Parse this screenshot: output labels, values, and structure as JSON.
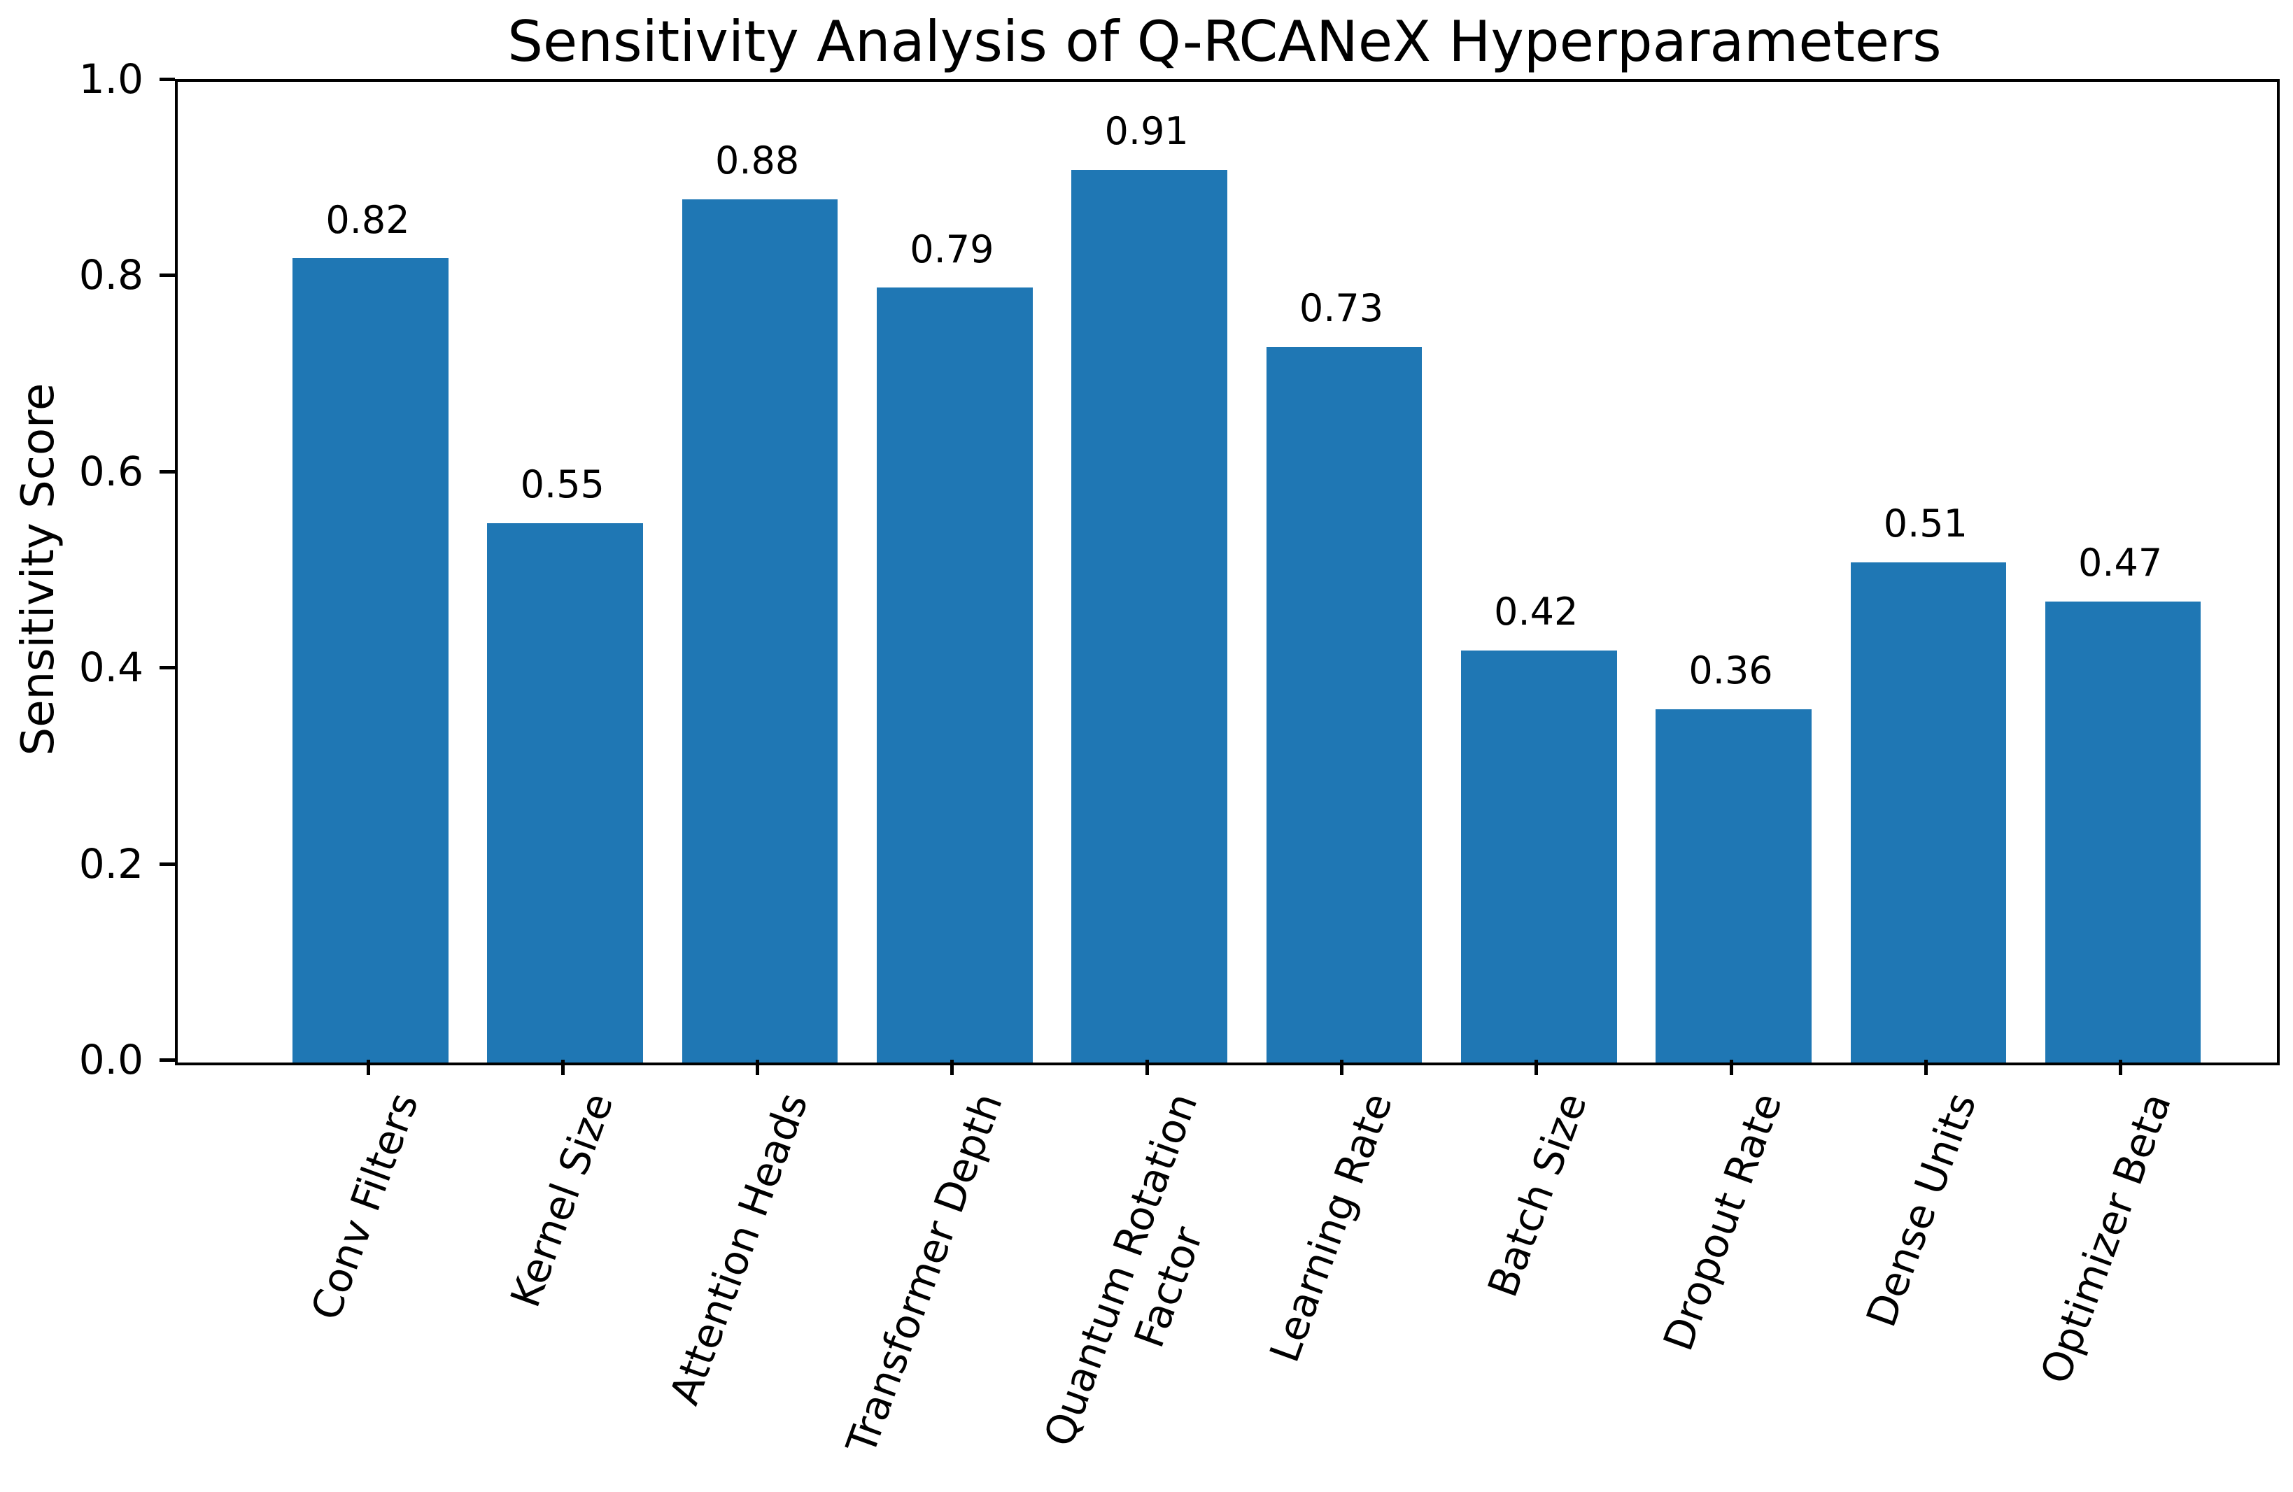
{
  "figure": {
    "background": "#ffffff",
    "text_color": "#000000"
  },
  "chart_data": {
    "type": "bar",
    "title": "Sensitivity Analysis of Q-RCANeX Hyperparameters",
    "xlabel": "",
    "ylabel": "Sensitivity Score",
    "categories": [
      "Conv Filters",
      "Kernel Size",
      "Attention Heads",
      "Transformer Depth",
      "Quantum Rotation\nFactor",
      "Learning Rate",
      "Batch Size",
      "Dropout Rate",
      "Dense Units",
      "Optimizer Beta"
    ],
    "values": [
      0.82,
      0.55,
      0.88,
      0.79,
      0.91,
      0.73,
      0.42,
      0.36,
      0.51,
      0.47
    ],
    "value_labels": [
      "0.82",
      "0.55",
      "0.88",
      "0.79",
      "0.91",
      "0.73",
      "0.42",
      "0.36",
      "0.51",
      "0.47"
    ],
    "ylim": [
      0.0,
      1.0
    ],
    "ytick_labels": [
      "0.0",
      "0.2",
      "0.4",
      "0.6",
      "0.8",
      "1.0"
    ],
    "ytick_values": [
      0.0,
      0.2,
      0.4,
      0.6,
      0.8,
      1.0
    ],
    "bar_color": "#1f77b4",
    "bar_width_fraction": 0.8,
    "x_tick_rotation_deg": 70,
    "grid": false,
    "legend": "none"
  }
}
